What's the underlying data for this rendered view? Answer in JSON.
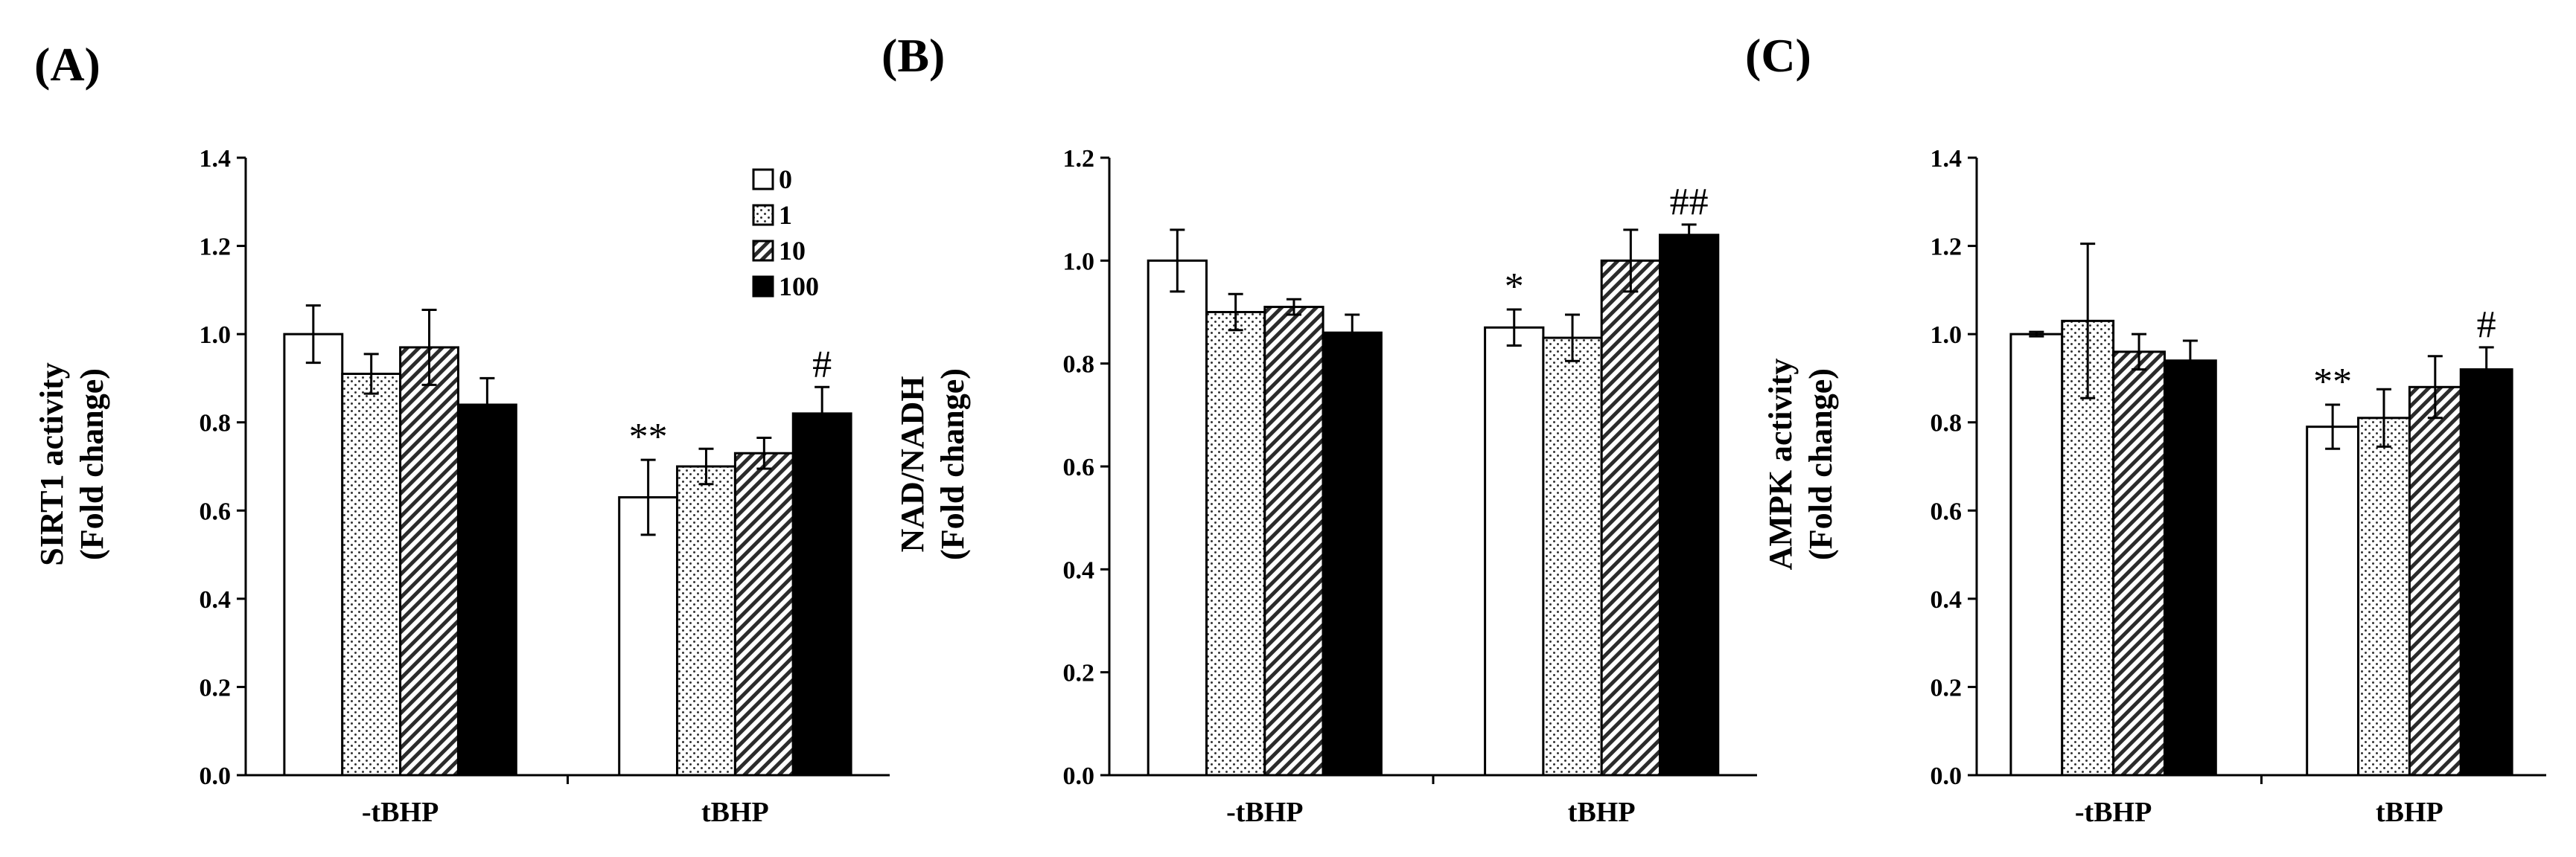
{
  "chart_data": [
    {
      "type": "bar",
      "panel_label": "(A)",
      "ylabel_line1": "SIRT1 activity",
      "ylabel_line2": "(Fold change)",
      "ylim": [
        0,
        1.4
      ],
      "yticks": [
        0.0,
        0.2,
        0.4,
        0.6,
        0.8,
        1.0,
        1.2,
        1.4
      ],
      "ytick_labels": [
        "0.0",
        "0.2",
        "0.4",
        "0.6",
        "0.8",
        "1.0",
        "1.2",
        "1.4"
      ],
      "categories": [
        "-tBHP",
        "tBHP"
      ],
      "series": [
        {
          "name": "0",
          "values": [
            1.0,
            0.63
          ],
          "errors": [
            0.065,
            0.085
          ],
          "pattern": "white"
        },
        {
          "name": "1",
          "values": [
            0.91,
            0.7
          ],
          "errors": [
            0.045,
            0.04
          ],
          "pattern": "dots"
        },
        {
          "name": "10",
          "values": [
            0.97,
            0.73
          ],
          "errors": [
            0.085,
            0.035
          ],
          "pattern": "hatch"
        },
        {
          "name": "100",
          "values": [
            0.84,
            0.82
          ],
          "errors": [
            0.06,
            0.06
          ],
          "pattern": "black"
        }
      ],
      "annotations": [
        {
          "text": "**",
          "category": 1,
          "series": 0
        },
        {
          "text": "#",
          "category": 1,
          "series": 3
        }
      ],
      "legend": {
        "show": true,
        "placement": "top-right"
      }
    },
    {
      "type": "bar",
      "panel_label": "(B)",
      "ylabel_line1": "NAD/NADH",
      "ylabel_line2": "(Fold change)",
      "ylim": [
        0,
        1.2
      ],
      "yticks": [
        0.0,
        0.2,
        0.4,
        0.6,
        0.8,
        1.0,
        1.2
      ],
      "ytick_labels": [
        "0.0",
        "0.2",
        "0.4",
        "0.6",
        "0.8",
        "1.0",
        "1.2"
      ],
      "categories": [
        "-tBHP",
        "tBHP"
      ],
      "series": [
        {
          "name": "0",
          "values": [
            1.0,
            0.87
          ],
          "errors": [
            0.06,
            0.035
          ],
          "pattern": "white"
        },
        {
          "name": "1",
          "values": [
            0.9,
            0.85
          ],
          "errors": [
            0.035,
            0.045
          ],
          "pattern": "dots"
        },
        {
          "name": "10",
          "values": [
            0.91,
            1.0
          ],
          "errors": [
            0.015,
            0.06
          ],
          "pattern": "hatch"
        },
        {
          "name": "100",
          "values": [
            0.86,
            1.05
          ],
          "errors": [
            0.035,
            0.02
          ],
          "pattern": "black"
        }
      ],
      "annotations": [
        {
          "text": "*",
          "category": 1,
          "series": 0
        },
        {
          "text": "##",
          "category": 1,
          "series": 3
        }
      ],
      "legend": {
        "show": false
      }
    },
    {
      "type": "bar",
      "panel_label": "(C)",
      "ylabel_line1": "AMPK activity",
      "ylabel_line2": "(Fold change)",
      "ylim": [
        0,
        1.4
      ],
      "yticks": [
        0.0,
        0.2,
        0.4,
        0.6,
        0.8,
        1.0,
        1.2,
        1.4
      ],
      "ytick_labels": [
        "0.0",
        "0.2",
        "0.4",
        "0.6",
        "0.8",
        "1.0",
        "1.2",
        "1.4"
      ],
      "categories": [
        "-tBHP",
        "tBHP"
      ],
      "series": [
        {
          "name": "0",
          "values": [
            1.0,
            0.79
          ],
          "errors": [
            0.005,
            0.05
          ],
          "pattern": "white"
        },
        {
          "name": "1",
          "values": [
            1.03,
            0.81
          ],
          "errors": [
            0.175,
            0.065
          ],
          "pattern": "dots"
        },
        {
          "name": "10",
          "values": [
            0.96,
            0.88
          ],
          "errors": [
            0.04,
            0.07
          ],
          "pattern": "hatch"
        },
        {
          "name": "100",
          "values": [
            0.94,
            0.92
          ],
          "errors": [
            0.045,
            0.05
          ],
          "pattern": "black"
        }
      ],
      "annotations": [
        {
          "text": "**",
          "category": 1,
          "series": 0
        },
        {
          "text": "#",
          "category": 1,
          "series": 3
        }
      ],
      "legend": {
        "show": false
      }
    }
  ]
}
